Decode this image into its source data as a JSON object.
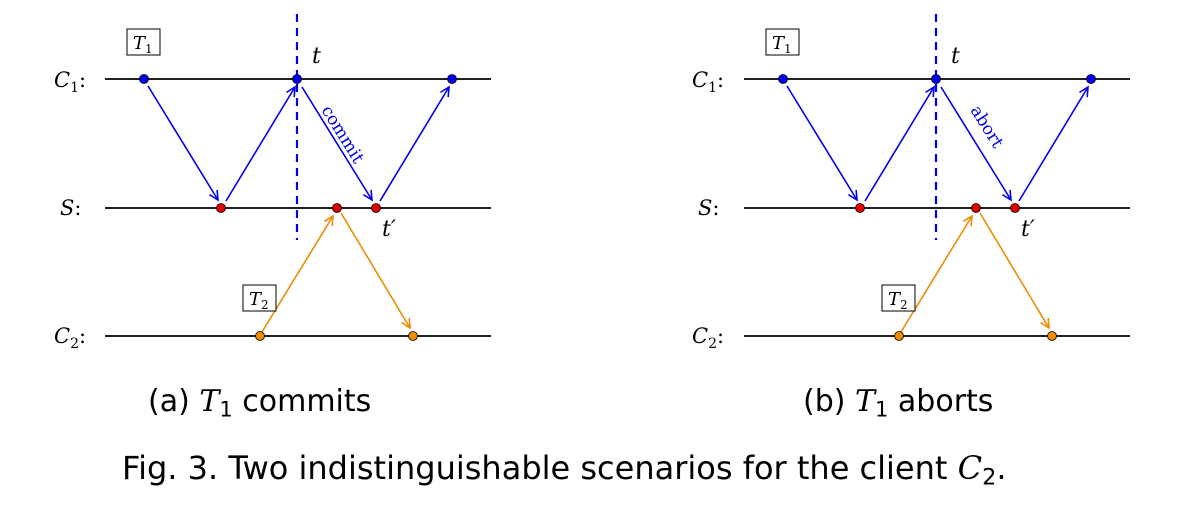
{
  "panels": [
    {
      "id": "a",
      "lane_labels": {
        "c1": "C",
        "c1_sub": "1",
        "s": "S",
        "c2": "C",
        "c2_sub": "2"
      },
      "box_t1": "T",
      "box_t1_sub": "1",
      "box_t2": "T",
      "box_t2_sub": "2",
      "label_t": "t",
      "label_tprime": "t′",
      "message_label": "commit",
      "caption_prefix": "(a) ",
      "caption_math": "T",
      "caption_math_sub": "1",
      "caption_suffix": " commits"
    },
    {
      "id": "b",
      "lane_labels": {
        "c1": "C",
        "c1_sub": "1",
        "s": "S",
        "c2": "C",
        "c2_sub": "2"
      },
      "box_t1": "T",
      "box_t1_sub": "1",
      "box_t2": "T",
      "box_t2_sub": "2",
      "label_t": "t",
      "label_tprime": "t′",
      "message_label": "abort",
      "caption_prefix": "(b) ",
      "caption_math": "T",
      "caption_math_sub": "1",
      "caption_suffix": " aborts"
    }
  ],
  "figure_caption": {
    "prefix": "Fig. 3.  Two indistinguishable scenarios for the client ",
    "math": "C",
    "math_sub": "2",
    "suffix": "."
  },
  "colors": {
    "client1": "#0000ee",
    "client2": "#f08a00",
    "server": "#e00000",
    "line": "#000000"
  }
}
